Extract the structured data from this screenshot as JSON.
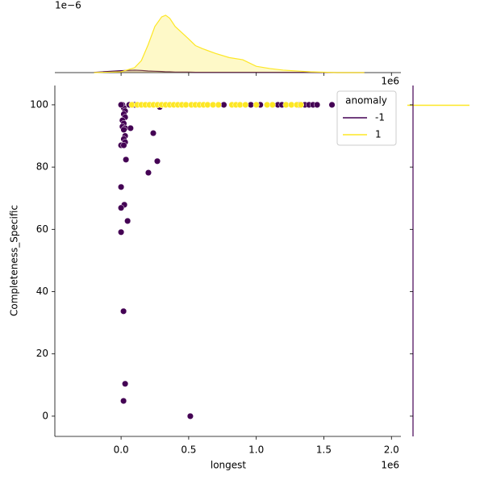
{
  "chart_data": [
    {
      "type": "scatter",
      "x_label": "longest",
      "y_label": "Completeness_Specific",
      "x_offset": "1e6",
      "xlim": [
        -0.49,
        2.07
      ],
      "ylim": [
        -6.5,
        106.2
      ],
      "xticks": [
        {
          "value": 0,
          "label": "0.0"
        },
        {
          "value": 0.5,
          "label": "0.5"
        },
        {
          "value": 1,
          "label": "1.0"
        },
        {
          "value": 1.5,
          "label": "1.5"
        },
        {
          "value": 2,
          "label": "2.0"
        }
      ],
      "yticks": [
        0,
        20,
        40,
        60,
        80,
        100
      ],
      "legend": {
        "title": "anomaly",
        "position": "upper right"
      },
      "series": [
        {
          "name": "-1",
          "color": "#440154",
          "x": [
            0.01,
            0.02,
            0.03,
            0.02,
            0.03,
            0.01,
            0.02,
            0.01,
            0.03,
            0.07,
            0.02,
            0.03,
            0.02,
            0.03,
            0.0,
            0.02,
            0.036,
            0.238,
            0.268,
            0.202,
            0.0,
            0.024,
            0.0,
            0.048,
            0.0,
            0.018,
            0.03,
            0.018,
            0.512,
            0.0,
            0.06,
            0.1,
            0.286,
            0.76,
            0.96,
            1.03,
            1.16,
            1.19,
            1.32,
            1.36,
            1.39,
            1.42,
            1.45,
            1.56
          ],
          "values": [
            100,
            99,
            98,
            97,
            96,
            95,
            94,
            93,
            92.5,
            92.5,
            92,
            90,
            89,
            88,
            87,
            87,
            82.4,
            90.9,
            81.9,
            78.2,
            73.6,
            67.9,
            66.9,
            62.7,
            59.1,
            33.7,
            10.4,
            4.9,
            0,
            100,
            100,
            100,
            99.3,
            100,
            100,
            100,
            100,
            100,
            100,
            100,
            100,
            100,
            100,
            100
          ]
        },
        {
          "name": "1",
          "color": "#fde725",
          "x": [
            0.08,
            0.12,
            0.15,
            0.18,
            0.21,
            0.24,
            0.27,
            0.3,
            0.33,
            0.36,
            0.39,
            0.42,
            0.45,
            0.48,
            0.52,
            0.55,
            0.58,
            0.61,
            0.64,
            0.68,
            0.72,
            0.82,
            0.85,
            0.88,
            0.92,
            1.0,
            1.08,
            1.12,
            1.22,
            1.26,
            1.3,
            1.33
          ],
          "values": [
            100,
            100,
            100,
            100,
            100,
            100,
            100,
            100,
            100,
            100,
            100,
            100,
            100,
            100,
            100,
            100,
            100,
            100,
            100,
            100,
            100,
            100,
            100,
            100,
            100,
            100,
            100,
            100,
            100,
            100,
            100,
            100
          ]
        }
      ]
    },
    {
      "type": "kde",
      "y_offset": "1e−6",
      "xlim": [
        -0.49,
        2.07
      ],
      "ylim": [
        0,
        2.6
      ],
      "x": [
        -0.2,
        0,
        0.1,
        0.15,
        0.2,
        0.25,
        0.3,
        0.33,
        0.36,
        0.4,
        0.45,
        0.5,
        0.55,
        0.6,
        0.7,
        0.8,
        0.9,
        1.0,
        1.1,
        1.2,
        1.4,
        1.6,
        1.8
      ],
      "series": [
        {
          "color": "#440154",
          "values": [
            0.01,
            0.07,
            0.09,
            0.08,
            0.06,
            0.05,
            0.04,
            0.03,
            0.03,
            0.02,
            0.02,
            0.02,
            0.01,
            0.01,
            0.01,
            0.01,
            0.01,
            0.01,
            0.01,
            0.01,
            0.01,
            0,
            0
          ]
        },
        {
          "color": "#fde725",
          "values": [
            0,
            0.03,
            0.18,
            0.44,
            1.02,
            1.69,
            2.04,
            2.1,
            1.99,
            1.69,
            1.46,
            1.23,
            0.99,
            0.88,
            0.7,
            0.55,
            0.47,
            0.23,
            0.15,
            0.09,
            0.03,
            0,
            0
          ]
        }
      ]
    }
  ]
}
